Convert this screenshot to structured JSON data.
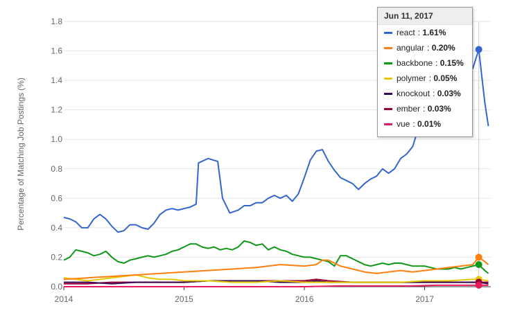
{
  "chart_data": {
    "type": "line",
    "title": "",
    "xlabel": "",
    "ylabel": "Percentage of Matching Job Postings (%)",
    "xlim": [
      2014.0,
      2017.55
    ],
    "ylim": [
      0,
      1.8
    ],
    "y_ticks": [
      "0.0",
      "0.2",
      "0.4",
      "0.6",
      "0.8",
      "1.0",
      "1.2",
      "1.4",
      "1.6",
      "1.8"
    ],
    "x_ticks": [
      {
        "value": 2014,
        "label": "2014"
      },
      {
        "value": 2015,
        "label": "2015"
      },
      {
        "value": 2016,
        "label": "2016"
      },
      {
        "value": 2017,
        "label": "2017"
      }
    ],
    "grid": true,
    "hover_x": 2017.45,
    "series": [
      {
        "name": "react",
        "color": "#3366cc",
        "points": [
          [
            2014.0,
            0.47
          ],
          [
            2014.05,
            0.46
          ],
          [
            2014.1,
            0.44
          ],
          [
            2014.15,
            0.4
          ],
          [
            2014.2,
            0.4
          ],
          [
            2014.25,
            0.46
          ],
          [
            2014.3,
            0.49
          ],
          [
            2014.35,
            0.46
          ],
          [
            2014.4,
            0.41
          ],
          [
            2014.45,
            0.37
          ],
          [
            2014.5,
            0.38
          ],
          [
            2014.55,
            0.42
          ],
          [
            2014.6,
            0.42
          ],
          [
            2014.65,
            0.4
          ],
          [
            2014.7,
            0.39
          ],
          [
            2014.75,
            0.43
          ],
          [
            2014.8,
            0.49
          ],
          [
            2014.85,
            0.52
          ],
          [
            2014.9,
            0.53
          ],
          [
            2014.95,
            0.52
          ],
          [
            2015.0,
            0.53
          ],
          [
            2015.05,
            0.54
          ],
          [
            2015.1,
            0.56
          ],
          [
            2015.12,
            0.84
          ],
          [
            2015.2,
            0.87
          ],
          [
            2015.28,
            0.85
          ],
          [
            2015.32,
            0.6
          ],
          [
            2015.38,
            0.5
          ],
          [
            2015.45,
            0.52
          ],
          [
            2015.5,
            0.55
          ],
          [
            2015.55,
            0.55
          ],
          [
            2015.6,
            0.57
          ],
          [
            2015.65,
            0.57
          ],
          [
            2015.7,
            0.6
          ],
          [
            2015.75,
            0.62
          ],
          [
            2015.8,
            0.6
          ],
          [
            2015.85,
            0.62
          ],
          [
            2015.9,
            0.58
          ],
          [
            2015.95,
            0.63
          ],
          [
            2016.0,
            0.74
          ],
          [
            2016.05,
            0.86
          ],
          [
            2016.1,
            0.92
          ],
          [
            2016.15,
            0.93
          ],
          [
            2016.2,
            0.85
          ],
          [
            2016.25,
            0.79
          ],
          [
            2016.3,
            0.74
          ],
          [
            2016.35,
            0.72
          ],
          [
            2016.4,
            0.7
          ],
          [
            2016.45,
            0.66
          ],
          [
            2016.5,
            0.7
          ],
          [
            2016.55,
            0.73
          ],
          [
            2016.6,
            0.75
          ],
          [
            2016.65,
            0.8
          ],
          [
            2016.7,
            0.77
          ],
          [
            2016.75,
            0.8
          ],
          [
            2016.8,
            0.87
          ],
          [
            2016.85,
            0.9
          ],
          [
            2016.9,
            0.95
          ],
          [
            2016.95,
            1.08
          ],
          [
            2017.0,
            1.25
          ],
          [
            2017.05,
            1.38
          ],
          [
            2017.1,
            1.45
          ],
          [
            2017.15,
            1.42
          ],
          [
            2017.2,
            1.5
          ],
          [
            2017.25,
            1.46
          ],
          [
            2017.3,
            1.5
          ],
          [
            2017.35,
            1.55
          ],
          [
            2017.4,
            1.48
          ],
          [
            2017.45,
            1.61
          ],
          [
            2017.5,
            1.25
          ],
          [
            2017.53,
            1.09
          ]
        ]
      },
      {
        "name": "angular",
        "color": "#ff7f0e",
        "points": [
          [
            2014.0,
            0.05
          ],
          [
            2014.2,
            0.06
          ],
          [
            2014.4,
            0.07
          ],
          [
            2014.6,
            0.08
          ],
          [
            2014.8,
            0.09
          ],
          [
            2015.0,
            0.1
          ],
          [
            2015.2,
            0.11
          ],
          [
            2015.4,
            0.12
          ],
          [
            2015.6,
            0.13
          ],
          [
            2015.8,
            0.15
          ],
          [
            2016.0,
            0.14
          ],
          [
            2016.1,
            0.15
          ],
          [
            2016.15,
            0.18
          ],
          [
            2016.2,
            0.18
          ],
          [
            2016.3,
            0.14
          ],
          [
            2016.4,
            0.12
          ],
          [
            2016.5,
            0.1
          ],
          [
            2016.6,
            0.09
          ],
          [
            2016.7,
            0.1
          ],
          [
            2016.8,
            0.11
          ],
          [
            2016.9,
            0.1
          ],
          [
            2017.0,
            0.11
          ],
          [
            2017.1,
            0.12
          ],
          [
            2017.2,
            0.13
          ],
          [
            2017.3,
            0.14
          ],
          [
            2017.4,
            0.15
          ],
          [
            2017.45,
            0.2
          ],
          [
            2017.5,
            0.17
          ],
          [
            2017.53,
            0.15
          ]
        ]
      },
      {
        "name": "backbone",
        "color": "#109618",
        "points": [
          [
            2014.0,
            0.18
          ],
          [
            2014.05,
            0.2
          ],
          [
            2014.1,
            0.25
          ],
          [
            2014.15,
            0.24
          ],
          [
            2014.2,
            0.23
          ],
          [
            2014.25,
            0.21
          ],
          [
            2014.3,
            0.22
          ],
          [
            2014.35,
            0.24
          ],
          [
            2014.4,
            0.2
          ],
          [
            2014.45,
            0.17
          ],
          [
            2014.5,
            0.16
          ],
          [
            2014.55,
            0.18
          ],
          [
            2014.6,
            0.19
          ],
          [
            2014.65,
            0.2
          ],
          [
            2014.7,
            0.21
          ],
          [
            2014.75,
            0.2
          ],
          [
            2014.8,
            0.21
          ],
          [
            2014.85,
            0.22
          ],
          [
            2014.9,
            0.24
          ],
          [
            2014.95,
            0.25
          ],
          [
            2015.0,
            0.27
          ],
          [
            2015.05,
            0.29
          ],
          [
            2015.1,
            0.29
          ],
          [
            2015.15,
            0.27
          ],
          [
            2015.2,
            0.26
          ],
          [
            2015.25,
            0.27
          ],
          [
            2015.3,
            0.25
          ],
          [
            2015.35,
            0.26
          ],
          [
            2015.4,
            0.25
          ],
          [
            2015.45,
            0.27
          ],
          [
            2015.5,
            0.31
          ],
          [
            2015.55,
            0.3
          ],
          [
            2015.6,
            0.28
          ],
          [
            2015.65,
            0.29
          ],
          [
            2015.7,
            0.25
          ],
          [
            2015.75,
            0.27
          ],
          [
            2015.8,
            0.25
          ],
          [
            2015.85,
            0.24
          ],
          [
            2015.9,
            0.22
          ],
          [
            2015.95,
            0.21
          ],
          [
            2016.0,
            0.2
          ],
          [
            2016.05,
            0.2
          ],
          [
            2016.1,
            0.19
          ],
          [
            2016.15,
            0.18
          ],
          [
            2016.2,
            0.17
          ],
          [
            2016.25,
            0.14
          ],
          [
            2016.3,
            0.21
          ],
          [
            2016.35,
            0.21
          ],
          [
            2016.4,
            0.19
          ],
          [
            2016.45,
            0.17
          ],
          [
            2016.5,
            0.15
          ],
          [
            2016.55,
            0.14
          ],
          [
            2016.6,
            0.15
          ],
          [
            2016.65,
            0.16
          ],
          [
            2016.7,
            0.15
          ],
          [
            2016.75,
            0.16
          ],
          [
            2016.8,
            0.16
          ],
          [
            2016.85,
            0.15
          ],
          [
            2016.9,
            0.14
          ],
          [
            2016.95,
            0.14
          ],
          [
            2017.0,
            0.14
          ],
          [
            2017.05,
            0.13
          ],
          [
            2017.1,
            0.12
          ],
          [
            2017.15,
            0.12
          ],
          [
            2017.2,
            0.12
          ],
          [
            2017.25,
            0.13
          ],
          [
            2017.3,
            0.12
          ],
          [
            2017.35,
            0.13
          ],
          [
            2017.4,
            0.14
          ],
          [
            2017.45,
            0.15
          ],
          [
            2017.5,
            0.11
          ],
          [
            2017.53,
            0.09
          ]
        ]
      },
      {
        "name": "polymer",
        "color": "#e6c800",
        "points": [
          [
            2014.0,
            0.06
          ],
          [
            2014.1,
            0.05
          ],
          [
            2014.2,
            0.04
          ],
          [
            2014.3,
            0.05
          ],
          [
            2014.4,
            0.06
          ],
          [
            2014.5,
            0.07
          ],
          [
            2014.6,
            0.08
          ],
          [
            2014.7,
            0.06
          ],
          [
            2014.8,
            0.05
          ],
          [
            2014.9,
            0.05
          ],
          [
            2015.0,
            0.04
          ],
          [
            2015.2,
            0.04
          ],
          [
            2015.4,
            0.03
          ],
          [
            2015.6,
            0.03
          ],
          [
            2015.8,
            0.04
          ],
          [
            2016.0,
            0.03
          ],
          [
            2016.2,
            0.03
          ],
          [
            2016.4,
            0.03
          ],
          [
            2016.6,
            0.03
          ],
          [
            2016.8,
            0.03
          ],
          [
            2017.0,
            0.04
          ],
          [
            2017.2,
            0.04
          ],
          [
            2017.4,
            0.05
          ],
          [
            2017.45,
            0.05
          ],
          [
            2017.53,
            0.04
          ]
        ]
      },
      {
        "name": "knockout",
        "color": "#3b0a57",
        "points": [
          [
            2014.0,
            0.03
          ],
          [
            2014.2,
            0.03
          ],
          [
            2014.4,
            0.02
          ],
          [
            2014.6,
            0.03
          ],
          [
            2014.8,
            0.03
          ],
          [
            2015.0,
            0.03
          ],
          [
            2015.2,
            0.04
          ],
          [
            2015.4,
            0.04
          ],
          [
            2015.6,
            0.04
          ],
          [
            2015.8,
            0.03
          ],
          [
            2016.0,
            0.03
          ],
          [
            2016.1,
            0.04
          ],
          [
            2016.2,
            0.03
          ],
          [
            2016.4,
            0.03
          ],
          [
            2016.6,
            0.03
          ],
          [
            2016.8,
            0.03
          ],
          [
            2017.0,
            0.03
          ],
          [
            2017.2,
            0.03
          ],
          [
            2017.4,
            0.03
          ],
          [
            2017.45,
            0.03
          ],
          [
            2017.53,
            0.02
          ]
        ]
      },
      {
        "name": "ember",
        "color": "#990033",
        "points": [
          [
            2014.0,
            0.02
          ],
          [
            2014.2,
            0.02
          ],
          [
            2014.4,
            0.03
          ],
          [
            2014.6,
            0.03
          ],
          [
            2014.8,
            0.03
          ],
          [
            2015.0,
            0.03
          ],
          [
            2015.2,
            0.04
          ],
          [
            2015.4,
            0.04
          ],
          [
            2015.6,
            0.04
          ],
          [
            2015.8,
            0.04
          ],
          [
            2016.0,
            0.04
          ],
          [
            2016.1,
            0.05
          ],
          [
            2016.2,
            0.04
          ],
          [
            2016.4,
            0.03
          ],
          [
            2016.6,
            0.03
          ],
          [
            2016.8,
            0.03
          ],
          [
            2017.0,
            0.03
          ],
          [
            2017.2,
            0.03
          ],
          [
            2017.4,
            0.03
          ],
          [
            2017.45,
            0.03
          ],
          [
            2017.53,
            0.03
          ]
        ]
      },
      {
        "name": "vue",
        "color": "#e8195d",
        "points": [
          [
            2014.0,
            0.0
          ],
          [
            2014.5,
            0.0
          ],
          [
            2015.0,
            0.0
          ],
          [
            2015.5,
            0.0
          ],
          [
            2016.0,
            0.0
          ],
          [
            2016.3,
            0.005
          ],
          [
            2016.6,
            0.005
          ],
          [
            2016.9,
            0.005
          ],
          [
            2017.1,
            0.01
          ],
          [
            2017.3,
            0.01
          ],
          [
            2017.45,
            0.01
          ],
          [
            2017.53,
            0.01
          ]
        ]
      }
    ]
  },
  "tooltip": {
    "date": "Jun 11, 2017",
    "rows": [
      {
        "name": "react",
        "value": "1.61%",
        "color": "#3366cc"
      },
      {
        "name": "angular",
        "value": "0.20%",
        "color": "#ff7f0e"
      },
      {
        "name": "backbone",
        "value": "0.15%",
        "color": "#109618"
      },
      {
        "name": "polymer",
        "value": "0.05%",
        "color": "#e6c800"
      },
      {
        "name": "knockout",
        "value": "0.03%",
        "color": "#3b0a57"
      },
      {
        "name": "ember",
        "value": "0.03%",
        "color": "#990033"
      },
      {
        "name": "vue",
        "value": "0.01%",
        "color": "#e8195d"
      }
    ]
  }
}
